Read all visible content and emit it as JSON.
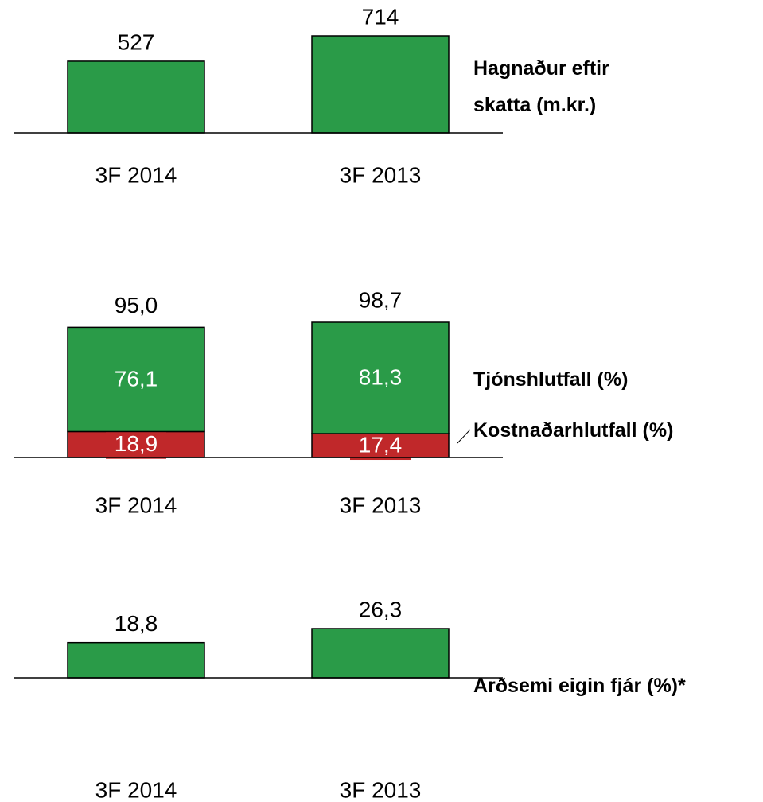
{
  "chart_data": [
    {
      "type": "bar",
      "label": "Hagnaður eftir skatta (m.kr.)",
      "categories": [
        "3F 2014",
        "3F 2013"
      ],
      "values": [
        527,
        714
      ],
      "color": "#2a9b48"
    },
    {
      "type": "stacked_bar",
      "categories": [
        "3F 2014",
        "3F 2013"
      ],
      "series": [
        {
          "name": "Kostnaðarhlutfall (%)",
          "color": "#c0282a",
          "values": [
            18.9,
            17.4
          ],
          "value_labels": [
            "18,9",
            "17,4"
          ]
        },
        {
          "name": "Tjónshlutfall (%)",
          "color": "#2a9b48",
          "values": [
            76.1,
            81.3
          ],
          "value_labels": [
            "76,1",
            "81,3"
          ]
        }
      ],
      "totals": [
        95.0,
        98.7
      ],
      "total_labels": [
        "95,0",
        "98,7"
      ]
    },
    {
      "type": "bar",
      "label": "Arðsemi eigin fjár (%)*",
      "categories": [
        "3F 2014",
        "3F 2013"
      ],
      "values": [
        18.8,
        26.3
      ],
      "value_labels": [
        "18,8",
        "26,3"
      ],
      "color": "#2a9b48"
    }
  ]
}
